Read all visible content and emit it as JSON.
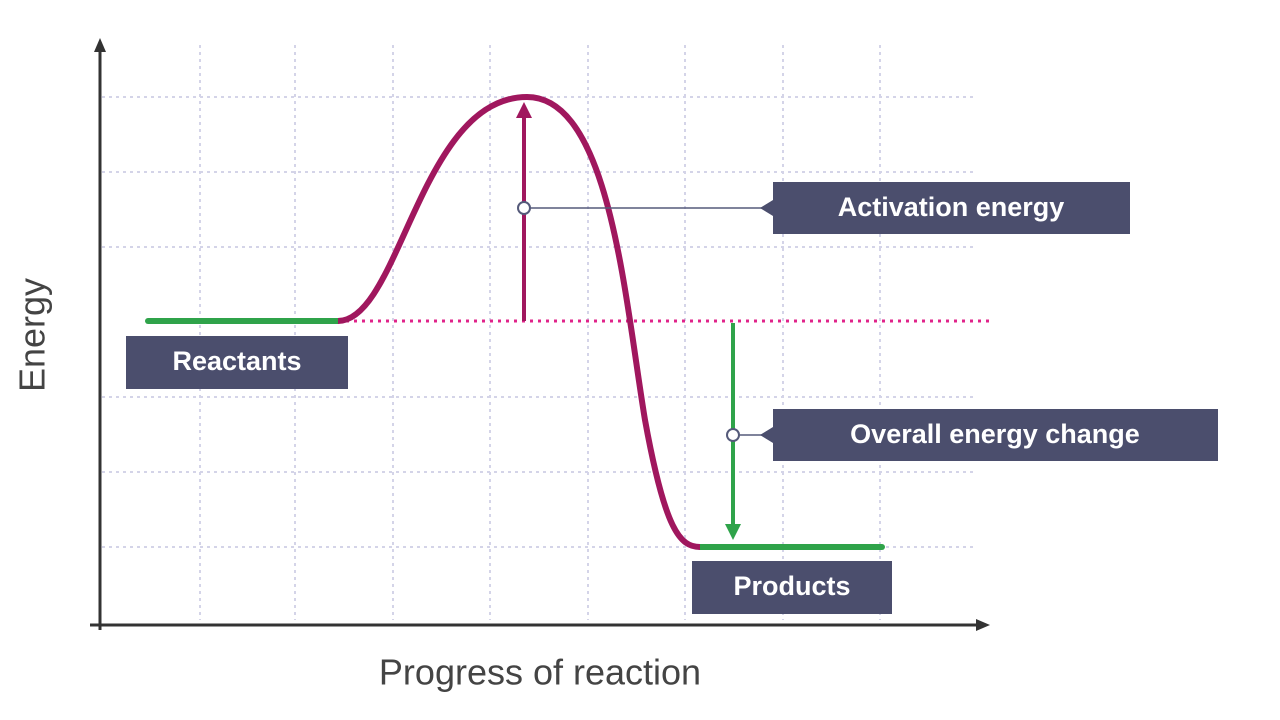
{
  "axes": {
    "y_label": "Energy",
    "x_label": "Progress of reaction"
  },
  "labels": {
    "reactants": "Reactants",
    "products": "Products",
    "activation": "Activation energy",
    "overall": "Overall energy change"
  }
}
